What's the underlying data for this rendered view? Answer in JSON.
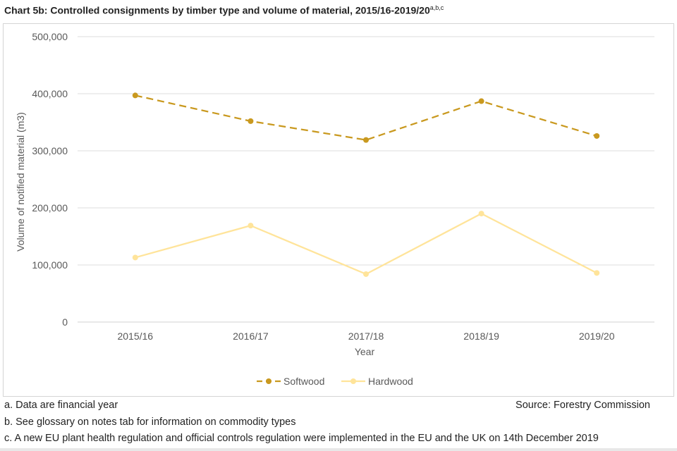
{
  "title": {
    "text": "Chart 5b: Controlled consignments by timber type and volume of material, 2015/16-2019/20",
    "superscript": "a,b,c"
  },
  "chart_data": {
    "type": "line",
    "categories": [
      "2015/16",
      "2016/17",
      "2017/18",
      "2018/19",
      "2019/20"
    ],
    "series": [
      {
        "name": "Softwood",
        "values": [
          397000,
          352000,
          319000,
          387000,
          326000
        ],
        "color": "#C9991F",
        "dashed": true
      },
      {
        "name": "Hardwood",
        "values": [
          113000,
          169000,
          84000,
          190000,
          86000
        ],
        "color": "#FFE49A",
        "dashed": false
      }
    ],
    "xlabel": "Year",
    "ylabel": "Volume of notified material (m3)",
    "ylim": [
      0,
      500000
    ],
    "yticks": [
      0,
      100000,
      200000,
      300000,
      400000,
      500000
    ],
    "ytick_labels": [
      "0",
      "100,000",
      "200,000",
      "300,000",
      "400,000",
      "500,000"
    ],
    "grid": true,
    "legend_position": "bottom"
  },
  "notes": {
    "a": "a. Data are financial year",
    "b": "b. See glossary on notes tab for information on commodity types",
    "c": "c. A new EU plant health regulation and official controls regulation were implemented in the EU and the UK on 14th December 2019"
  },
  "source": "Source: Forestry Commission"
}
